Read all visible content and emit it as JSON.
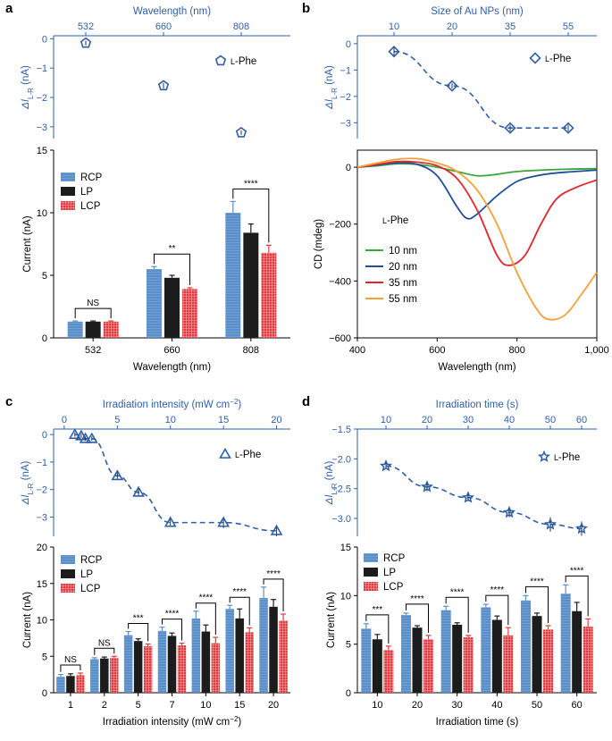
{
  "colors": {
    "blue": "#2e5fa8",
    "rcp": "#5b8fc9",
    "lp": "#1c1c1c",
    "lcp": "#e0393e",
    "nm10": "#3aa53a",
    "nm20": "#1f4e9c",
    "nm35": "#e0262b",
    "nm55": "#f4a13a"
  },
  "panel_labels": {
    "a": "a",
    "b": "b",
    "c": "c",
    "d": "d"
  },
  "chart_data": [
    {
      "id": "a_top",
      "type": "scatter",
      "xlabel": "Wavelength (nm)",
      "ylabel": "ΔIL-R (nA)",
      "ylabel_main": "ΔI",
      "ylabel_sub": "L-R",
      "ylabel_unit": " (nA)",
      "x_ticks": [
        "532",
        "660",
        "808"
      ],
      "y_ticks": [
        "0",
        "−1",
        "−2",
        "−3"
      ],
      "ylim": [
        -3.4,
        0.1
      ],
      "points": [
        {
          "x": "532",
          "y": -0.15,
          "err": 0.08
        },
        {
          "x": "660",
          "y": -1.6,
          "err": 0.1
        },
        {
          "x": "808",
          "y": -3.2,
          "err": 0.08
        }
      ],
      "legend": "L-Phe",
      "legend_prefix": "L",
      "legend_rest": "-Phe",
      "marker": "pentagon"
    },
    {
      "id": "a_bottom",
      "type": "bar",
      "xlabel": "Wavelength (nm)",
      "ylabel": "Current (nA)",
      "categories": [
        "532",
        "660",
        "808"
      ],
      "y_ticks": [
        "0",
        "5",
        "10",
        "15"
      ],
      "ylim": [
        0,
        15
      ],
      "legend": [
        "RCP",
        "LP",
        "LCP"
      ],
      "series": [
        {
          "name": "RCP",
          "values": [
            1.3,
            5.5,
            10.0
          ],
          "errors": [
            0.05,
            0.2,
            0.9
          ]
        },
        {
          "name": "LP",
          "values": [
            1.3,
            4.8,
            8.4
          ],
          "errors": [
            0.05,
            0.2,
            0.7
          ]
        },
        {
          "name": "LCP",
          "values": [
            1.3,
            3.9,
            6.8
          ],
          "errors": [
            0.05,
            0.1,
            0.6
          ]
        }
      ],
      "significance": [
        "NS",
        "**",
        "****"
      ]
    },
    {
      "id": "b_top",
      "type": "scatter",
      "xlabel": "Size of Au NPs (nm)",
      "ylabel": "ΔIL-R (nA)",
      "ylabel_main": "ΔI",
      "ylabel_sub": "L-R",
      "ylabel_unit": " (nA)",
      "x_ticks": [
        "10",
        "20",
        "35",
        "55"
      ],
      "y_ticks": [
        "0",
        "−1",
        "−2",
        "−3"
      ],
      "ylim": [
        -3.6,
        0.3
      ],
      "points": [
        {
          "x": "10",
          "y": -0.3,
          "err": 0.15
        },
        {
          "x": "20",
          "y": -1.6,
          "err": 0.1
        },
        {
          "x": "35",
          "y": -3.2,
          "err": 0.12
        },
        {
          "x": "55",
          "y": -3.2,
          "err": 0.12
        }
      ],
      "fit": "dashed",
      "legend": "L-Phe",
      "legend_prefix": "L",
      "legend_rest": "-Phe",
      "marker": "diamond"
    },
    {
      "id": "b_bottom",
      "type": "line",
      "xlabel": "Wavelength (nm)",
      "ylabel": "CD (mdeg)",
      "x_ticks": [
        "400",
        "600",
        "800",
        "1,000"
      ],
      "xlim": [
        400,
        1000
      ],
      "y_ticks": [
        "0",
        "−200",
        "−400",
        "−600"
      ],
      "ylim": [
        -600,
        60
      ],
      "annotation": "L-Phe",
      "annotation_prefix": "L",
      "annotation_rest": "-Phe",
      "series": [
        {
          "name": "10 nm",
          "x": [
            400,
            450,
            500,
            550,
            600,
            650,
            700,
            750,
            800,
            900,
            1000
          ],
          "y": [
            0,
            5,
            12,
            10,
            0,
            -15,
            -30,
            -25,
            -15,
            -8,
            -5
          ]
        },
        {
          "name": "20 nm",
          "x": [
            400,
            450,
            500,
            550,
            600,
            650,
            675,
            700,
            750,
            800,
            850,
            900,
            1000
          ],
          "y": [
            0,
            8,
            15,
            10,
            -30,
            -140,
            -180,
            -165,
            -100,
            -50,
            -30,
            -20,
            -10
          ]
        },
        {
          "name": "35 nm",
          "x": [
            400,
            450,
            500,
            550,
            600,
            650,
            700,
            750,
            780,
            820,
            860,
            900,
            950,
            1000
          ],
          "y": [
            0,
            10,
            20,
            18,
            5,
            -40,
            -150,
            -310,
            -345,
            -310,
            -200,
            -110,
            -70,
            -45
          ]
        },
        {
          "name": "55 nm",
          "x": [
            400,
            450,
            500,
            550,
            600,
            650,
            700,
            750,
            800,
            850,
            880,
            920,
            960,
            1000
          ],
          "y": [
            0,
            15,
            28,
            30,
            15,
            -15,
            -80,
            -200,
            -370,
            -500,
            -535,
            -520,
            -450,
            -370
          ]
        }
      ]
    },
    {
      "id": "c_top",
      "type": "scatter",
      "xlabel": "Irradiation intensity (mW cm−2)",
      "xlabel_main": "Irradiation intensity (mW cm",
      "xlabel_sup": "−2",
      "xlabel_end": ")",
      "ylabel": "ΔIL-R (nA)",
      "ylabel_main": "ΔI",
      "ylabel_sub": "L-R",
      "ylabel_unit": " (nA)",
      "x_ticks": [
        "0",
        "5",
        "10",
        "15",
        "20"
      ],
      "xlim": [
        -1,
        21.3
      ],
      "y_ticks": [
        "0",
        "−1",
        "−2",
        "−3"
      ],
      "ylim": [
        -3.7,
        0.2
      ],
      "points": [
        {
          "x": 1,
          "y": 0.0,
          "err": 0.08
        },
        {
          "x": 1.6,
          "y": -0.05,
          "err": 0.08
        },
        {
          "x": 2,
          "y": -0.15,
          "err": 0.08
        },
        {
          "x": 2.6,
          "y": -0.15,
          "err": 0.08
        },
        {
          "x": 5,
          "y": -1.5,
          "err": 0.15
        },
        {
          "x": 7,
          "y": -2.1,
          "err": 0.15
        },
        {
          "x": 10,
          "y": -3.2,
          "err": 0.15
        },
        {
          "x": 15,
          "y": -3.2,
          "err": 0.2
        },
        {
          "x": 20,
          "y": -3.5,
          "err": 0.2
        }
      ],
      "fit": "dashed",
      "legend": "L-Phe",
      "legend_prefix": "L",
      "legend_rest": "-Phe",
      "marker": "triangle"
    },
    {
      "id": "c_bottom",
      "type": "bar",
      "xlabel": "Irradiation intensity (mW cm−2)",
      "xlabel_main": "Irradiation intensity (mW cm",
      "xlabel_sup": "−2",
      "xlabel_end": ")",
      "ylabel": "Current (nA)",
      "categories": [
        "1",
        "2",
        "5",
        "7",
        "10",
        "15",
        "20"
      ],
      "y_ticks": [
        "0",
        "5",
        "10",
        "15",
        "20"
      ],
      "ylim": [
        0,
        20
      ],
      "legend": [
        "RCP",
        "LP",
        "LCP"
      ],
      "series": [
        {
          "name": "RCP",
          "values": [
            2.2,
            4.6,
            7.9,
            8.5,
            10.2,
            11.5,
            13.0
          ],
          "errors": [
            0.3,
            0.2,
            0.5,
            0.5,
            1.0,
            0.5,
            1.5
          ]
        },
        {
          "name": "LP",
          "values": [
            2.3,
            4.7,
            7.1,
            7.8,
            8.4,
            10.2,
            11.8
          ],
          "errors": [
            0.3,
            0.2,
            0.3,
            0.4,
            0.9,
            1.3,
            1.0
          ]
        },
        {
          "name": "LCP",
          "values": [
            2.4,
            4.8,
            6.4,
            6.5,
            6.8,
            8.3,
            9.9
          ],
          "errors": [
            0.3,
            0.2,
            0.3,
            0.3,
            0.8,
            0.6,
            0.9
          ]
        }
      ],
      "significance": [
        "NS",
        "NS",
        "***",
        "****",
        "****",
        "****",
        "****"
      ]
    },
    {
      "id": "d_top",
      "type": "scatter",
      "xlabel": "Irradiation time (s)",
      "ylabel": "ΔIL-R (nA)",
      "ylabel_main": "ΔI",
      "ylabel_sub": "L-R",
      "ylabel_unit": " (nA)",
      "x_ticks": [
        "10",
        "20",
        "30",
        "40",
        "50",
        "60"
      ],
      "y_ticks": [
        "−1.5",
        "−2.0",
        "−2.5",
        "−3.0"
      ],
      "ylim": [
        -3.3,
        -1.5
      ],
      "points": [
        {
          "x": "10",
          "y": -2.12,
          "err": 0.05
        },
        {
          "x": "20",
          "y": -2.47,
          "err": 0.07
        },
        {
          "x": "30",
          "y": -2.65,
          "err": 0.06
        },
        {
          "x": "40",
          "y": -2.9,
          "err": 0.08
        },
        {
          "x": "50",
          "y": -3.1,
          "err": 0.12
        },
        {
          "x": "60",
          "y": -3.17,
          "err": 0.12
        }
      ],
      "fit": "dashed",
      "legend": "L-Phe",
      "legend_prefix": "L",
      "legend_rest": "-Phe",
      "marker": "star"
    },
    {
      "id": "d_bottom",
      "type": "bar",
      "xlabel": "Irradiation time (s)",
      "ylabel": "Current (nA)",
      "categories": [
        "10",
        "20",
        "30",
        "40",
        "50",
        "60"
      ],
      "y_ticks": [
        "0",
        "5",
        "10",
        "15"
      ],
      "ylim": [
        0,
        15
      ],
      "legend": [
        "RCP",
        "LP",
        "LCP"
      ],
      "series": [
        {
          "name": "RCP",
          "values": [
            6.6,
            8.0,
            8.5,
            8.8,
            9.5,
            10.2
          ],
          "errors": [
            0.5,
            0.2,
            0.4,
            0.3,
            0.5,
            0.9
          ]
        },
        {
          "name": "LP",
          "values": [
            5.5,
            6.7,
            7.0,
            7.5,
            7.9,
            8.4
          ],
          "errors": [
            0.5,
            0.2,
            0.2,
            0.4,
            0.3,
            0.9
          ]
        },
        {
          "name": "LCP",
          "values": [
            4.4,
            5.5,
            5.7,
            5.9,
            6.5,
            6.8
          ],
          "errors": [
            0.4,
            0.4,
            0.2,
            0.8,
            0.4,
            0.8
          ]
        }
      ],
      "significance": [
        "***",
        "****",
        "****",
        "****",
        "****",
        "****"
      ]
    }
  ]
}
